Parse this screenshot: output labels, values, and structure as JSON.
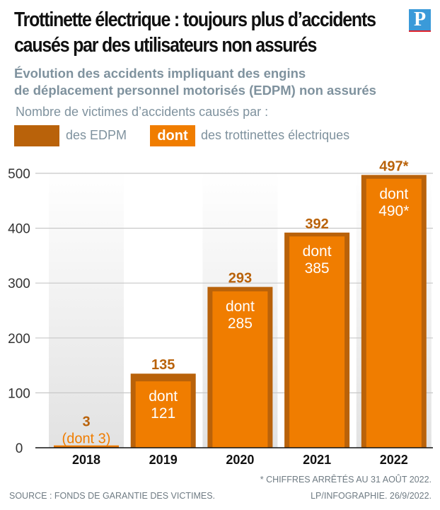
{
  "title": "Trottinette électrique : toujours plus d’accidents causés par des utilisateurs non assurés",
  "title_lines": [
    "Trottinette électrique : toujours plus d’accidents",
    "causés par des utilisateurs non assurés"
  ],
  "subtitle_lines": [
    "Évolution des accidents impliquant des engins",
    "de déplacement personnel motorisés (EDPM) non assurés"
  ],
  "logo": "P",
  "legend": {
    "caption": "Nombre de victimes d’accidents causés par :",
    "edpm": "des EDPM",
    "dont_swatch": "dont",
    "trottinettes": "des trottinettes électriques"
  },
  "footer": {
    "note": "* CHIFFRES ARRÊTÉS AU 31 AOÛT 2022.",
    "source": "SOURCE : FONDS DE GARANTIE DES VICTIMES.",
    "credit": "LP/INFOGRAPHIE.  26/9/2022."
  },
  "colors": {
    "edpm": "#B9620A",
    "trottinettes": "#F07D00",
    "label": "#B9620A"
  },
  "chart_data": {
    "type": "bar",
    "categories": [
      "2018",
      "2019",
      "2020",
      "2021",
      "2022"
    ],
    "series": [
      {
        "name": "des EDPM",
        "values": [
          3,
          135,
          293,
          392,
          497
        ]
      },
      {
        "name": "des trottinettes électriques",
        "values": [
          3,
          121,
          285,
          385,
          490
        ]
      }
    ],
    "value_labels": [
      "3",
      "135",
      "293",
      "392",
      "497*"
    ],
    "inner_labels": [
      [
        "(dont 3)"
      ],
      [
        "dont",
        "121"
      ],
      [
        "dont",
        "285"
      ],
      [
        "dont",
        "385"
      ],
      [
        "dont",
        "490*"
      ]
    ],
    "yticks": [
      0,
      100,
      200,
      300,
      400,
      500
    ],
    "ylim": [
      0,
      500
    ],
    "grid": true,
    "legend": "top-left"
  }
}
